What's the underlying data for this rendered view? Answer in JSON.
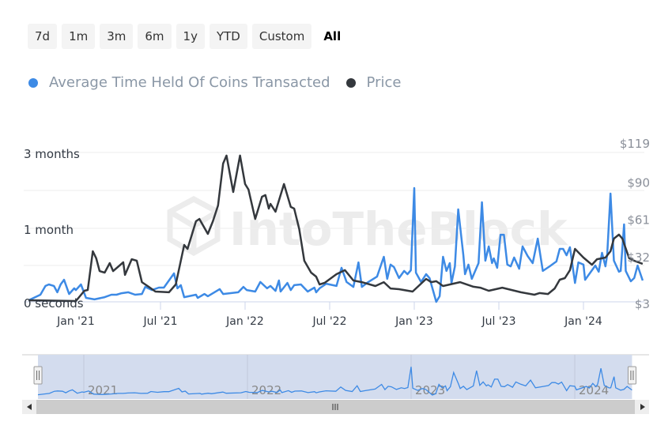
{
  "range_buttons": [
    {
      "label": "7d",
      "active": false
    },
    {
      "label": "1m",
      "active": false
    },
    {
      "label": "3m",
      "active": false
    },
    {
      "label": "6m",
      "active": false
    },
    {
      "label": "1y",
      "active": false
    },
    {
      "label": "YTD",
      "active": false
    },
    {
      "label": "Custom",
      "active": false
    },
    {
      "label": "All",
      "active": true
    }
  ],
  "watermark": "IntoTheBlock",
  "colors": {
    "time_held": "#3d8ae5",
    "price": "#34383d",
    "grid": "#eeeeee",
    "axis": "#ccd6eb",
    "navigator_mask": "#d3dcee",
    "scrollbar": "#cccccc"
  },
  "chart_data": {
    "type": "line",
    "title": "",
    "legend": {
      "placement": "top-left",
      "entries": [
        "Average Time Held Of Coins Transacted",
        "Price"
      ]
    },
    "x_axis": {
      "unit": "decimal year",
      "range": [
        2020.72,
        2024.35
      ],
      "ticks": [
        {
          "value": 2021.0,
          "label": "Jan '21"
        },
        {
          "value": 2021.5,
          "label": "Jul '21"
        },
        {
          "value": 2022.0,
          "label": "Jan '22"
        },
        {
          "value": 2022.5,
          "label": "Jul '22"
        },
        {
          "value": 2023.0,
          "label": "Jan '23"
        },
        {
          "value": 2023.5,
          "label": "Jul '23"
        },
        {
          "value": 2024.0,
          "label": "Jan '24"
        }
      ]
    },
    "y_left": {
      "unit": "days",
      "ticks": [
        {
          "value": 0,
          "label": "0 seconds"
        },
        {
          "value": 30,
          "label": "1 month"
        },
        {
          "value": 90,
          "label": "3 months"
        }
      ]
    },
    "y_right": {
      "unit": "USD",
      "range": [
        3,
        119
      ],
      "ticks": [
        {
          "value": 3,
          "label": "$3"
        },
        {
          "value": 32,
          "label": "$32"
        },
        {
          "value": 61,
          "label": "$61"
        },
        {
          "value": 90,
          "label": "$90"
        },
        {
          "value": 119,
          "label": "$119"
        }
      ]
    },
    "grid": true,
    "series": [
      {
        "name": "Average Time Held Of Coins Transacted",
        "axis": "left",
        "color": "#3d8ae5",
        "points": [
          [
            2020.72,
            0.6
          ],
          [
            2020.79,
            2.9
          ],
          [
            2020.82,
            6.5
          ],
          [
            2020.84,
            7.1
          ],
          [
            2020.87,
            6.5
          ],
          [
            2020.89,
            3.9
          ],
          [
            2020.91,
            7.1
          ],
          [
            2020.93,
            9.0
          ],
          [
            2020.96,
            3.2
          ],
          [
            2020.99,
            5.5
          ],
          [
            2021.0,
            4.8
          ],
          [
            2021.03,
            7.1
          ],
          [
            2021.06,
            1.6
          ],
          [
            2021.11,
            1.0
          ],
          [
            2021.17,
            1.9
          ],
          [
            2021.21,
            2.9
          ],
          [
            2021.24,
            2.9
          ],
          [
            2021.27,
            3.5
          ],
          [
            2021.31,
            3.9
          ],
          [
            2021.35,
            2.9
          ],
          [
            2021.39,
            3.2
          ],
          [
            2021.41,
            6.1
          ],
          [
            2021.45,
            4.8
          ],
          [
            2021.49,
            5.8
          ],
          [
            2021.52,
            5.8
          ],
          [
            2021.58,
            11.6
          ],
          [
            2021.6,
            5.5
          ],
          [
            2021.62,
            6.8
          ],
          [
            2021.64,
            1.9
          ],
          [
            2021.71,
            2.9
          ],
          [
            2021.72,
            1.6
          ],
          [
            2021.76,
            3.2
          ],
          [
            2021.78,
            2.3
          ],
          [
            2021.85,
            5.2
          ],
          [
            2021.87,
            3.2
          ],
          [
            2021.96,
            3.9
          ],
          [
            2021.99,
            6.1
          ],
          [
            2022.01,
            4.8
          ],
          [
            2022.06,
            4.2
          ],
          [
            2022.09,
            8.1
          ],
          [
            2022.13,
            5.5
          ],
          [
            2022.15,
            6.5
          ],
          [
            2022.18,
            4.5
          ],
          [
            2022.2,
            8.7
          ],
          [
            2022.21,
            4.2
          ],
          [
            2022.25,
            7.7
          ],
          [
            2022.27,
            4.8
          ],
          [
            2022.29,
            6.8
          ],
          [
            2022.33,
            7.1
          ],
          [
            2022.37,
            4.2
          ],
          [
            2022.41,
            5.8
          ],
          [
            2022.42,
            3.9
          ],
          [
            2022.44,
            5.5
          ],
          [
            2022.48,
            7.4
          ],
          [
            2022.54,
            6.5
          ],
          [
            2022.57,
            13.9
          ],
          [
            2022.6,
            8.1
          ],
          [
            2022.64,
            6.1
          ],
          [
            2022.67,
            16.1
          ],
          [
            2022.69,
            6.1
          ],
          [
            2022.72,
            7.7
          ],
          [
            2022.78,
            10.3
          ],
          [
            2022.82,
            18.4
          ],
          [
            2022.84,
            9.4
          ],
          [
            2022.86,
            15.2
          ],
          [
            2022.88,
            14.2
          ],
          [
            2022.91,
            9.7
          ],
          [
            2022.94,
            12.6
          ],
          [
            2022.96,
            11.3
          ],
          [
            2022.98,
            12.9
          ],
          [
            2023.0,
            61.9
          ],
          [
            2023.01,
            11.9
          ],
          [
            2023.04,
            8.1
          ],
          [
            2023.07,
            11.3
          ],
          [
            2023.09,
            9.7
          ],
          [
            2023.13,
            0
          ],
          [
            2023.15,
            2.3
          ],
          [
            2023.17,
            18.4
          ],
          [
            2023.19,
            12.6
          ],
          [
            2023.21,
            15.8
          ],
          [
            2023.22,
            7.7
          ],
          [
            2023.24,
            14.5
          ],
          [
            2023.26,
            45.0
          ],
          [
            2023.29,
            19.0
          ],
          [
            2023.3,
            11.3
          ],
          [
            2023.32,
            15.2
          ],
          [
            2023.34,
            9.4
          ],
          [
            2023.38,
            15.8
          ],
          [
            2023.4,
            50.6
          ],
          [
            2023.42,
            16.8
          ],
          [
            2023.44,
            22.6
          ],
          [
            2023.46,
            15.8
          ],
          [
            2023.47,
            17.7
          ],
          [
            2023.49,
            13.9
          ],
          [
            2023.51,
            27.4
          ],
          [
            2023.53,
            27.4
          ],
          [
            2023.55,
            15.2
          ],
          [
            2023.57,
            14.5
          ],
          [
            2023.59,
            18.1
          ],
          [
            2023.62,
            13.5
          ],
          [
            2023.64,
            22.6
          ],
          [
            2023.67,
            18.7
          ],
          [
            2023.7,
            15.8
          ],
          [
            2023.73,
            25.8
          ],
          [
            2023.76,
            12.6
          ],
          [
            2023.8,
            14.5
          ],
          [
            2023.84,
            16.5
          ],
          [
            2023.86,
            21.6
          ],
          [
            2023.88,
            21.6
          ],
          [
            2023.9,
            19.0
          ],
          [
            2023.92,
            22.3
          ],
          [
            2023.95,
            7.7
          ],
          [
            2023.97,
            16.1
          ],
          [
            2024.0,
            15.2
          ],
          [
            2024.01,
            9.0
          ],
          [
            2024.07,
            14.8
          ],
          [
            2024.09,
            12.3
          ],
          [
            2024.11,
            20.0
          ],
          [
            2024.13,
            14.5
          ],
          [
            2024.14,
            19.0
          ],
          [
            2024.16,
            57.5
          ],
          [
            2024.18,
            16.8
          ],
          [
            2024.21,
            12.3
          ],
          [
            2024.22,
            12.6
          ],
          [
            2024.24,
            33.1
          ],
          [
            2024.25,
            12.6
          ],
          [
            2024.28,
            8.4
          ],
          [
            2024.3,
            9.7
          ],
          [
            2024.32,
            14.8
          ],
          [
            2024.35,
            8.7
          ]
        ]
      },
      {
        "name": "Price",
        "axis": "right",
        "color": "#34383d",
        "points": [
          [
            2020.72,
            4.2
          ],
          [
            2021.0,
            3.6
          ],
          [
            2021.05,
            11.6
          ],
          [
            2021.07,
            12.2
          ],
          [
            2021.1,
            42.3
          ],
          [
            2021.12,
            36.8
          ],
          [
            2021.14,
            26.9
          ],
          [
            2021.17,
            25.7
          ],
          [
            2021.2,
            33.1
          ],
          [
            2021.22,
            26.9
          ],
          [
            2021.28,
            33.7
          ],
          [
            2021.29,
            23.9
          ],
          [
            2021.33,
            36.1
          ],
          [
            2021.36,
            34.9
          ],
          [
            2021.39,
            18.3
          ],
          [
            2021.43,
            14.7
          ],
          [
            2021.47,
            11.0
          ],
          [
            2021.55,
            10.4
          ],
          [
            2021.59,
            16.5
          ],
          [
            2021.64,
            47.2
          ],
          [
            2021.66,
            44.1
          ],
          [
            2021.71,
            65.6
          ],
          [
            2021.73,
            67.4
          ],
          [
            2021.78,
            55.8
          ],
          [
            2021.81,
            65.6
          ],
          [
            2021.84,
            77.9
          ],
          [
            2021.87,
            110.4
          ],
          [
            2021.89,
            116.6
          ],
          [
            2021.93,
            88.3
          ],
          [
            2021.97,
            116.6
          ],
          [
            2022.0,
            94.5
          ],
          [
            2022.02,
            90.2
          ],
          [
            2022.06,
            67.4
          ],
          [
            2022.1,
            84.6
          ],
          [
            2022.12,
            85.9
          ],
          [
            2022.14,
            75.4
          ],
          [
            2022.15,
            79.1
          ],
          [
            2022.18,
            73.0
          ],
          [
            2022.23,
            94.5
          ],
          [
            2022.27,
            76.7
          ],
          [
            2022.29,
            75.4
          ],
          [
            2022.32,
            59.5
          ],
          [
            2022.35,
            34.9
          ],
          [
            2022.39,
            25.7
          ],
          [
            2022.42,
            22.6
          ],
          [
            2022.44,
            16.5
          ],
          [
            2022.47,
            17.7
          ],
          [
            2022.54,
            24.5
          ],
          [
            2022.59,
            27.6
          ],
          [
            2022.64,
            19.6
          ],
          [
            2022.69,
            18.3
          ],
          [
            2022.77,
            15.3
          ],
          [
            2022.82,
            18.3
          ],
          [
            2022.86,
            13.4
          ],
          [
            2022.91,
            12.8
          ],
          [
            2022.99,
            11.0
          ],
          [
            2023.07,
            20.8
          ],
          [
            2023.1,
            18.3
          ],
          [
            2023.13,
            19.0
          ],
          [
            2023.17,
            15.3
          ],
          [
            2023.27,
            18.3
          ],
          [
            2023.35,
            14.7
          ],
          [
            2023.39,
            14.0
          ],
          [
            2023.44,
            11.6
          ],
          [
            2023.52,
            14.0
          ],
          [
            2023.63,
            10.4
          ],
          [
            2023.71,
            8.5
          ],
          [
            2023.74,
            9.8
          ],
          [
            2023.79,
            9.1
          ],
          [
            2023.83,
            13.4
          ],
          [
            2023.86,
            20.2
          ],
          [
            2023.89,
            21.4
          ],
          [
            2023.92,
            27.6
          ],
          [
            2023.95,
            44.1
          ],
          [
            2024.0,
            37.4
          ],
          [
            2024.05,
            31.8
          ],
          [
            2024.08,
            36.1
          ],
          [
            2024.13,
            37.4
          ],
          [
            2024.16,
            42.3
          ],
          [
            2024.18,
            52.1
          ],
          [
            2024.21,
            55.2
          ],
          [
            2024.23,
            52.1
          ],
          [
            2024.27,
            36.8
          ],
          [
            2024.3,
            34.9
          ],
          [
            2024.35,
            32.5
          ]
        ]
      }
    ],
    "navigator": {
      "labels": [
        "2021",
        "2022",
        "2023",
        "2024"
      ],
      "years": [
        2021,
        2022,
        2023,
        2024
      ],
      "selection": [
        2020.72,
        2024.35
      ]
    }
  }
}
